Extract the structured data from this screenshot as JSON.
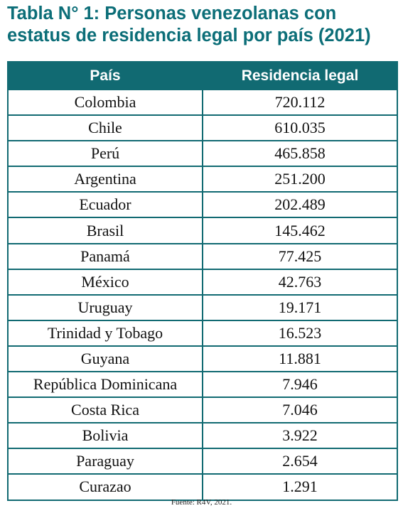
{
  "title": {
    "line1": "Tabla N° 1: Personas venezolanas con",
    "line2": "estatus de residencia legal por país (2021)"
  },
  "colors": {
    "title": "#0c6e78",
    "header_bg": "#116a72",
    "header_text": "#ffffff",
    "border": "#116a72"
  },
  "table": {
    "headers": [
      "País",
      "Residencia legal"
    ],
    "rows": [
      [
        "Colombia",
        "720.112"
      ],
      [
        "Chile",
        "610.035"
      ],
      [
        "Perú",
        "465.858"
      ],
      [
        "Argentina",
        "251.200"
      ],
      [
        "Ecuador",
        "202.489"
      ],
      [
        "Brasil",
        "145.462"
      ],
      [
        "Panamá",
        "77.425"
      ],
      [
        "México",
        "42.763"
      ],
      [
        "Uruguay",
        "19.171"
      ],
      [
        "Trinidad y Tobago",
        "16.523"
      ],
      [
        "Guyana",
        "11.881"
      ],
      [
        "República Dominicana",
        "7.946"
      ],
      [
        "Costa Rica",
        "7.046"
      ],
      [
        "Bolivia",
        "3.922"
      ],
      [
        "Paraguay",
        "2.654"
      ],
      [
        "Curazao",
        "1.291"
      ]
    ]
  },
  "source": "Fuente: R4V, 2021."
}
